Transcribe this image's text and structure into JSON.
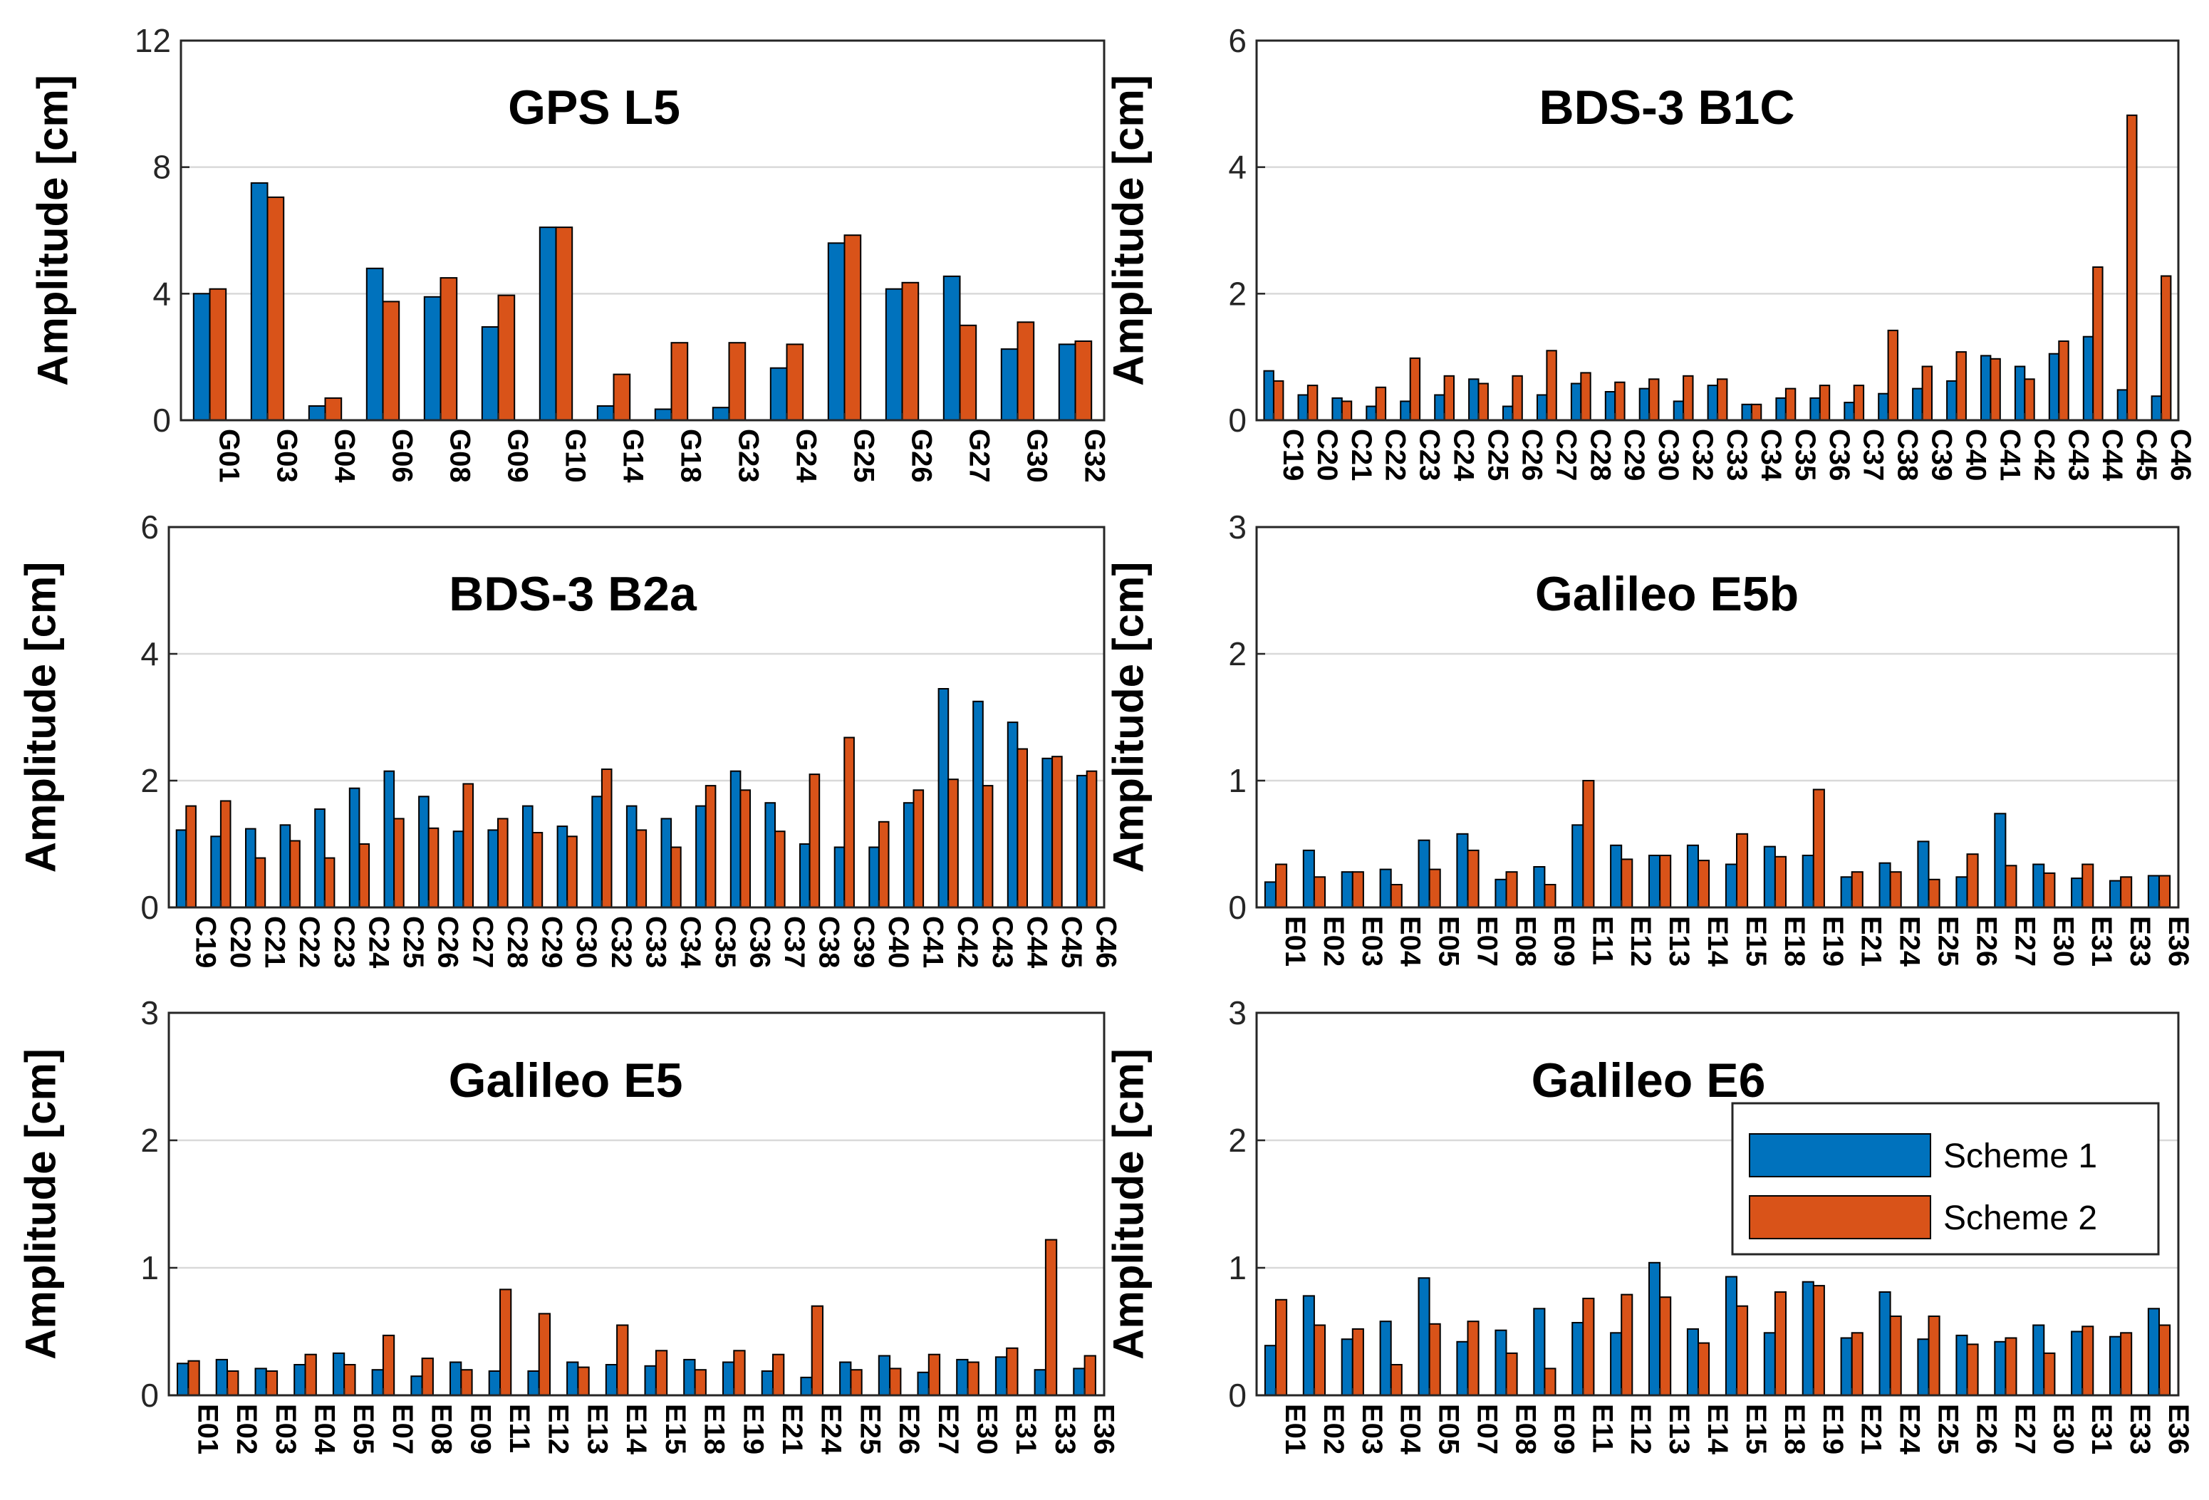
{
  "chart_data": [
    {
      "type": "bar",
      "title": "GPS L5",
      "ylabel": "Amplitude [cm]",
      "ylim": [
        0,
        12
      ],
      "yticks": [
        0,
        4,
        8,
        12
      ],
      "grid": true,
      "categories": [
        "G01",
        "G03",
        "G04",
        "G06",
        "G08",
        "G09",
        "G10",
        "G14",
        "G18",
        "G23",
        "G24",
        "G25",
        "G26",
        "G27",
        "G30",
        "G32"
      ],
      "series": [
        {
          "name": "Scheme 1",
          "color": "#0072BD",
          "values": [
            4.0,
            7.5,
            0.45,
            4.8,
            3.9,
            2.95,
            6.1,
            0.45,
            0.35,
            0.4,
            1.65,
            5.6,
            4.15,
            4.55,
            2.25,
            2.4
          ]
        },
        {
          "name": "Scheme 2",
          "color": "#D95319",
          "values": [
            4.15,
            7.05,
            0.7,
            3.75,
            4.5,
            3.95,
            6.1,
            1.45,
            2.45,
            2.45,
            2.4,
            5.85,
            4.35,
            3.0,
            3.1,
            2.5
          ]
        }
      ]
    },
    {
      "type": "bar",
      "title": "BDS-3 B1C",
      "ylabel": "Amplitude [cm]",
      "ylim": [
        0,
        6
      ],
      "yticks": [
        0,
        2,
        4,
        6
      ],
      "grid": true,
      "categories": [
        "C19",
        "C20",
        "C21",
        "C22",
        "C23",
        "C24",
        "C25",
        "C26",
        "C27",
        "C28",
        "C29",
        "C30",
        "C32",
        "C33",
        "C34",
        "C35",
        "C36",
        "C37",
        "C38",
        "C39",
        "C40",
        "C41",
        "C42",
        "C43",
        "C44",
        "C45",
        "C46"
      ],
      "series": [
        {
          "name": "Scheme 1",
          "color": "#0072BD",
          "values": [
            0.78,
            0.4,
            0.35,
            0.22,
            0.3,
            0.4,
            0.65,
            0.22,
            0.4,
            0.58,
            0.45,
            0.5,
            0.3,
            0.55,
            0.25,
            0.35,
            0.35,
            0.28,
            0.42,
            0.5,
            0.62,
            1.02,
            0.85,
            1.05,
            1.32,
            0.48,
            0.38
          ]
        },
        {
          "name": "Scheme 2",
          "color": "#D95319",
          "values": [
            0.62,
            0.55,
            0.3,
            0.52,
            0.98,
            0.7,
            0.58,
            0.7,
            1.1,
            0.75,
            0.6,
            0.65,
            0.7,
            0.65,
            0.25,
            0.5,
            0.55,
            0.55,
            1.42,
            0.85,
            1.08,
            0.97,
            0.65,
            1.25,
            2.42,
            4.82,
            2.28
          ]
        }
      ]
    },
    {
      "type": "bar",
      "title": "BDS-3 B2a",
      "ylabel": "Amplitude [cm]",
      "ylim": [
        0,
        6
      ],
      "yticks": [
        0,
        2,
        4,
        6
      ],
      "grid": true,
      "categories": [
        "C19",
        "C20",
        "C21",
        "C22",
        "C23",
        "C24",
        "C25",
        "C26",
        "C27",
        "C28",
        "C29",
        "C30",
        "C32",
        "C33",
        "C34",
        "C35",
        "C36",
        "C37",
        "C38",
        "C39",
        "C40",
        "C41",
        "C42",
        "C43",
        "C44",
        "C45",
        "C46"
      ],
      "series": [
        {
          "name": "Scheme 1",
          "color": "#0072BD",
          "values": [
            1.22,
            1.12,
            1.24,
            1.3,
            1.55,
            1.88,
            2.15,
            1.75,
            1.2,
            1.22,
            1.6,
            1.28,
            1.75,
            1.6,
            1.4,
            1.6,
            2.15,
            1.65,
            1.0,
            0.95,
            0.95,
            1.65,
            3.45,
            3.25,
            2.92,
            2.35,
            2.08
          ]
        },
        {
          "name": "Scheme 2",
          "color": "#D95319",
          "values": [
            1.6,
            1.68,
            0.78,
            1.05,
            0.78,
            1.0,
            1.4,
            1.25,
            1.95,
            1.4,
            1.18,
            1.12,
            2.18,
            1.22,
            0.95,
            1.92,
            1.85,
            1.2,
            2.1,
            2.68,
            1.35,
            1.85,
            2.02,
            1.92,
            2.5,
            2.38,
            2.15
          ]
        }
      ]
    },
    {
      "type": "bar",
      "title": "Galileo E5b",
      "ylabel": "Amplitude [cm]",
      "ylim": [
        0,
        3
      ],
      "yticks": [
        0,
        1,
        2,
        3
      ],
      "grid": true,
      "categories": [
        "E01",
        "E02",
        "E03",
        "E04",
        "E05",
        "E07",
        "E08",
        "E09",
        "E11",
        "E12",
        "E13",
        "E14",
        "E15",
        "E18",
        "E19",
        "E21",
        "E24",
        "E25",
        "E26",
        "E27",
        "E30",
        "E31",
        "E33",
        "E36"
      ],
      "series": [
        {
          "name": "Scheme 1",
          "color": "#0072BD",
          "values": [
            0.2,
            0.45,
            0.28,
            0.3,
            0.53,
            0.58,
            0.22,
            0.32,
            0.65,
            0.49,
            0.41,
            0.49,
            0.34,
            0.48,
            0.41,
            0.24,
            0.35,
            0.52,
            0.24,
            0.74,
            0.34,
            0.23,
            0.21,
            0.25
          ]
        },
        {
          "name": "Scheme 2",
          "color": "#D95319",
          "values": [
            0.34,
            0.24,
            0.28,
            0.18,
            0.3,
            0.45,
            0.28,
            0.18,
            1.0,
            0.38,
            0.41,
            0.37,
            0.58,
            0.4,
            0.93,
            0.28,
            0.28,
            0.22,
            0.42,
            0.33,
            0.27,
            0.34,
            0.24,
            0.25
          ]
        }
      ]
    },
    {
      "type": "bar",
      "title": "Galileo E5",
      "ylabel": "Amplitude [cm]",
      "ylim": [
        0,
        3
      ],
      "yticks": [
        0,
        1,
        2,
        3
      ],
      "grid": true,
      "categories": [
        "E01",
        "E02",
        "E03",
        "E04",
        "E05",
        "E07",
        "E08",
        "E09",
        "E11",
        "E12",
        "E13",
        "E14",
        "E15",
        "E18",
        "E19",
        "E21",
        "E24",
        "E25",
        "E26",
        "E27",
        "E30",
        "E31",
        "E33",
        "E36"
      ],
      "series": [
        {
          "name": "Scheme 1",
          "color": "#0072BD",
          "values": [
            0.25,
            0.28,
            0.21,
            0.24,
            0.33,
            0.2,
            0.15,
            0.26,
            0.19,
            0.19,
            0.26,
            0.24,
            0.23,
            0.28,
            0.26,
            0.19,
            0.14,
            0.26,
            0.31,
            0.18,
            0.28,
            0.3,
            0.2,
            0.21
          ]
        },
        {
          "name": "Scheme 2",
          "color": "#D95319",
          "values": [
            0.27,
            0.19,
            0.19,
            0.32,
            0.24,
            0.47,
            0.29,
            0.2,
            0.83,
            0.64,
            0.22,
            0.55,
            0.35,
            0.2,
            0.35,
            0.32,
            0.7,
            0.2,
            0.21,
            0.32,
            0.26,
            0.37,
            1.22,
            0.31
          ]
        }
      ]
    },
    {
      "type": "bar",
      "title": "Galileo E6",
      "ylabel": "Amplitude [cm]",
      "ylim": [
        0,
        3
      ],
      "yticks": [
        0,
        1,
        2,
        3
      ],
      "grid": true,
      "legend": {
        "position": "right",
        "entries": [
          "Scheme 1",
          "Scheme 2"
        ]
      },
      "categories": [
        "E01",
        "E02",
        "E03",
        "E04",
        "E05",
        "E07",
        "E08",
        "E09",
        "E11",
        "E12",
        "E13",
        "E14",
        "E15",
        "E18",
        "E19",
        "E21",
        "E24",
        "E25",
        "E26",
        "E27",
        "E30",
        "E31",
        "E33",
        "E36"
      ],
      "series": [
        {
          "name": "Scheme 1",
          "color": "#0072BD",
          "values": [
            0.39,
            0.78,
            0.44,
            0.58,
            0.92,
            0.42,
            0.51,
            0.68,
            0.57,
            0.49,
            1.04,
            0.52,
            0.93,
            0.49,
            0.89,
            0.45,
            0.81,
            0.44,
            0.47,
            0.42,
            0.55,
            0.5,
            0.46,
            0.68
          ]
        },
        {
          "name": "Scheme 2",
          "color": "#D95319",
          "values": [
            0.75,
            0.55,
            0.52,
            0.24,
            0.56,
            0.58,
            0.33,
            0.21,
            0.76,
            0.79,
            0.77,
            0.41,
            0.7,
            0.81,
            0.86,
            0.49,
            0.62,
            0.62,
            0.4,
            0.45,
            0.33,
            0.54,
            0.49,
            0.55
          ]
        }
      ]
    }
  ]
}
